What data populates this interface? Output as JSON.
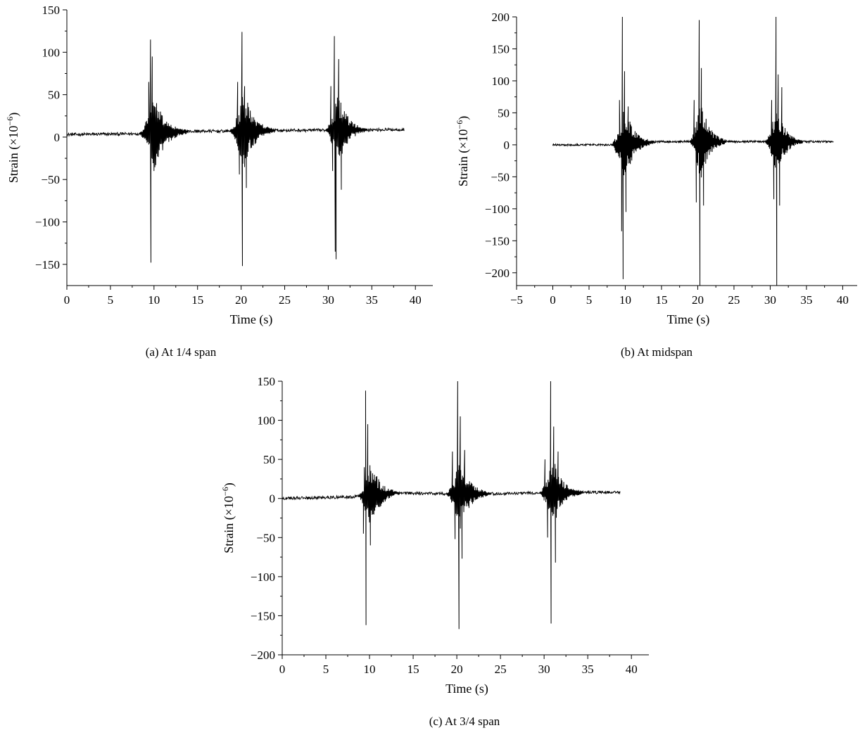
{
  "chart_data": [
    {
      "id": "a",
      "type": "line",
      "caption": "(a)  At 1/4 span",
      "xlabel": "Time (s)",
      "ylabel": "Strain",
      "ylabel_unit": "(×10",
      "ylabel_exp": "−6",
      "ylabel_close": ")",
      "xlim": [
        0,
        42
      ],
      "ylim": [
        -175,
        150
      ],
      "xticks": [
        0,
        5,
        10,
        15,
        20,
        25,
        30,
        35,
        40
      ],
      "yticks": [
        -150,
        -100,
        -50,
        0,
        50,
        100,
        150
      ],
      "series": [
        {
          "baseline": [
            [
              0,
              3
            ],
            [
              9,
              4
            ],
            [
              15,
              7
            ],
            [
              19,
              7
            ],
            [
              25,
              8
            ],
            [
              30,
              8
            ],
            [
              38.7,
              9
            ]
          ],
          "noise": 1.8,
          "bursts": [
            {
              "start": 8.2,
              "end": 14.0,
              "amp": 45,
              "spikes": [
                [
                  9.4,
                  65
                ],
                [
                  9.6,
                  115
                ],
                [
                  9.65,
                  -148
                ],
                [
                  9.8,
                  95
                ],
                [
                  10.0,
                  -40
                ],
                [
                  10.3,
                  40
                ]
              ]
            },
            {
              "start": 18.6,
              "end": 24.0,
              "amp": 48,
              "spikes": [
                [
                  19.6,
                  65
                ],
                [
                  19.8,
                  -44
                ],
                [
                  20.1,
                  124
                ],
                [
                  20.15,
                  -152
                ],
                [
                  20.4,
                  60
                ],
                [
                  20.6,
                  -60
                ]
              ]
            },
            {
              "start": 29.6,
              "end": 34.5,
              "amp": 45,
              "spikes": [
                [
                  30.3,
                  60
                ],
                [
                  30.5,
                  -40
                ],
                [
                  30.7,
                  119
                ],
                [
                  30.8,
                  -135
                ],
                [
                  30.9,
                  -144
                ],
                [
                  31.2,
                  92
                ],
                [
                  31.5,
                  -62
                ]
              ]
            }
          ]
        }
      ]
    },
    {
      "id": "b",
      "type": "line",
      "caption": "(b)  At midspan",
      "xlabel": "Time (s)",
      "ylabel": "Strain",
      "ylabel_unit": "(×10",
      "ylabel_exp": "−6",
      "ylabel_close": ")",
      "xlim": [
        -5,
        42
      ],
      "ylim": [
        -220,
        200
      ],
      "xticks": [
        -5,
        0,
        5,
        10,
        15,
        20,
        25,
        30,
        35,
        40
      ],
      "yticks": [
        -200,
        -150,
        -100,
        -50,
        0,
        50,
        100,
        150,
        200
      ],
      "series": [
        {
          "baseline": [
            [
              0,
              0
            ],
            [
              8,
              0
            ],
            [
              15,
              5
            ],
            [
              19,
              5
            ],
            [
              25,
              5
            ],
            [
              29,
              5
            ],
            [
              38.7,
              5
            ]
          ],
          "noise": 1.5,
          "bursts": [
            {
              "start": 8.0,
              "end": 14.0,
              "amp": 60,
              "spikes": [
                [
                  9.2,
                  70
                ],
                [
                  9.5,
                  -135
                ],
                [
                  9.6,
                  200
                ],
                [
                  9.7,
                  -210
                ],
                [
                  9.9,
                  115
                ],
                [
                  10.1,
                  -105
                ],
                [
                  10.4,
                  60
                ]
              ]
            },
            {
              "start": 18.8,
              "end": 24.0,
              "amp": 65,
              "spikes": [
                [
                  19.5,
                  70
                ],
                [
                  19.8,
                  -90
                ],
                [
                  20.2,
                  195
                ],
                [
                  20.3,
                  -220
                ],
                [
                  20.5,
                  120
                ],
                [
                  20.8,
                  -95
                ]
              ]
            },
            {
              "start": 29.2,
              "end": 34.5,
              "amp": 60,
              "spikes": [
                [
                  30.2,
                  70
                ],
                [
                  30.5,
                  -85
                ],
                [
                  30.8,
                  200
                ],
                [
                  30.9,
                  -220
                ],
                [
                  31.1,
                  110
                ],
                [
                  31.3,
                  -95
                ],
                [
                  31.6,
                  90
                ]
              ]
            }
          ]
        }
      ]
    },
    {
      "id": "c",
      "type": "line",
      "caption": "(c)  At 3/4 span",
      "xlabel": "Time (s)",
      "ylabel": "Strain",
      "ylabel_unit": "(×10",
      "ylabel_exp": "−6",
      "ylabel_close": ")",
      "xlim": [
        0,
        42
      ],
      "ylim": [
        -200,
        150
      ],
      "xticks": [
        0,
        5,
        10,
        15,
        20,
        25,
        30,
        35,
        40
      ],
      "yticks": [
        -200,
        -150,
        -100,
        -50,
        0,
        50,
        100,
        150
      ],
      "series": [
        {
          "baseline": [
            [
              0,
              0
            ],
            [
              8,
              2
            ],
            [
              13,
              7
            ],
            [
              19,
              6
            ],
            [
              25,
              6
            ],
            [
              29,
              7
            ],
            [
              38.7,
              8
            ]
          ],
          "noise": 1.8,
          "bursts": [
            {
              "start": 8.6,
              "end": 13.5,
              "amp": 45,
              "spikes": [
                [
                  9.3,
                  -45
                ],
                [
                  9.4,
                  40
                ],
                [
                  9.55,
                  138
                ],
                [
                  9.6,
                  -162
                ],
                [
                  9.8,
                  95
                ],
                [
                  10.1,
                  -60
                ]
              ]
            },
            {
              "start": 18.7,
              "end": 24.0,
              "amp": 45,
              "spikes": [
                [
                  19.5,
                  60
                ],
                [
                  19.8,
                  -52
                ],
                [
                  20.1,
                  150
                ],
                [
                  20.25,
                  -167
                ],
                [
                  20.4,
                  105
                ],
                [
                  20.6,
                  -77
                ],
                [
                  20.9,
                  62
                ]
              ]
            },
            {
              "start": 29.4,
              "end": 34.5,
              "amp": 45,
              "spikes": [
                [
                  30.1,
                  50
                ],
                [
                  30.4,
                  -50
                ],
                [
                  30.75,
                  150
                ],
                [
                  30.8,
                  -160
                ],
                [
                  31.1,
                  92
                ],
                [
                  31.3,
                  -82
                ],
                [
                  31.6,
                  60
                ]
              ]
            }
          ]
        }
      ]
    }
  ]
}
